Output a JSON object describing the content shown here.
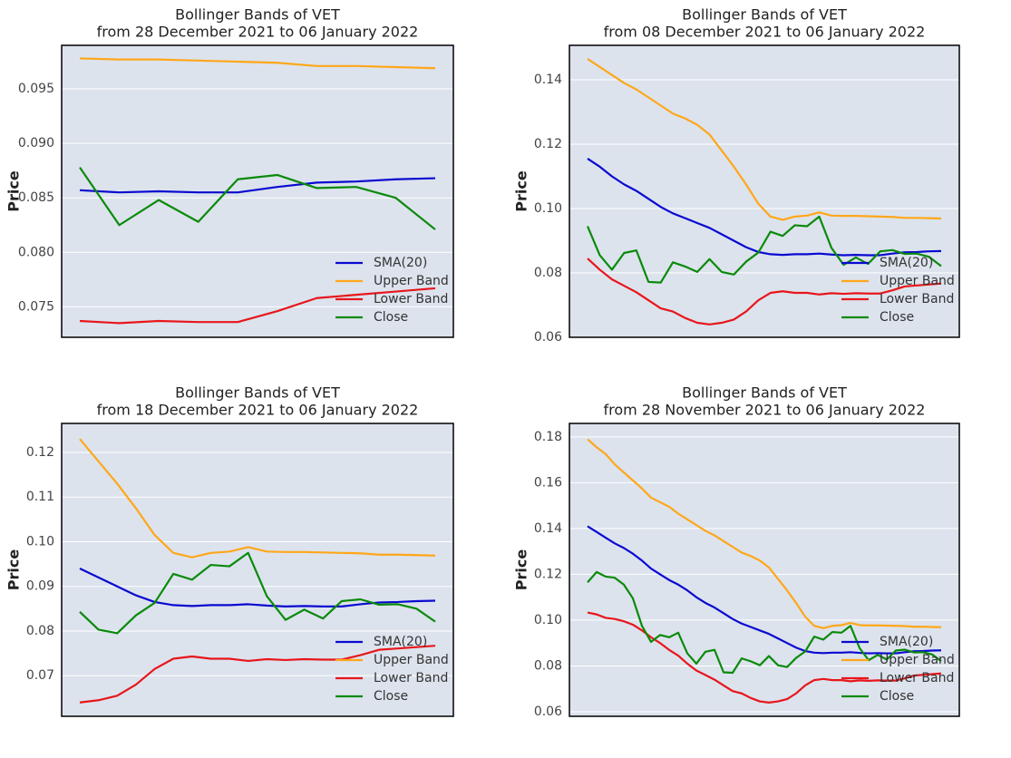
{
  "chart_data": [
    {
      "type": "line",
      "title": "Bollinger Bands of VET",
      "subtitle": "from 28 December 2021 to 06 January 2022",
      "y_label": "Price",
      "categories": [
        null,
        null,
        null,
        null,
        null,
        null,
        null,
        null,
        null,
        null
      ],
      "ylim": [
        0.0722,
        0.099
      ],
      "yticks": [
        {
          "value": 0.075,
          "label": "0.075"
        },
        {
          "value": 0.08,
          "label": "0.080"
        },
        {
          "value": 0.085,
          "label": "0.085"
        },
        {
          "value": 0.09,
          "label": "0.090"
        },
        {
          "value": 0.095,
          "label": "0.095"
        }
      ],
      "grid": true,
      "legend": "lower right",
      "series": [
        {
          "name": "SMA(20)",
          "color": "#0a0ad0",
          "values": [
            0.0857,
            0.0855,
            0.0856,
            0.0855,
            0.0855,
            0.086,
            0.0864,
            0.0865,
            0.0867,
            0.0868
          ]
        },
        {
          "name": "Upper Band",
          "color": "#ffa71a",
          "values": [
            0.0978,
            0.0977,
            0.0977,
            0.0976,
            0.0975,
            0.0974,
            0.0971,
            0.0971,
            0.097,
            0.0969
          ]
        },
        {
          "name": "Lower Band",
          "color": "#e8161b",
          "values": [
            0.0737,
            0.0735,
            0.0737,
            0.0736,
            0.0736,
            0.0746,
            0.0758,
            0.0761,
            0.0764,
            0.0767
          ]
        },
        {
          "name": "Close",
          "color": "#0a8a0a",
          "values": [
            0.0878,
            0.0825,
            0.0848,
            0.0828,
            0.0867,
            0.0871,
            0.0859,
            0.086,
            0.085,
            0.0821
          ]
        }
      ]
    },
    {
      "type": "line",
      "title": "Bollinger Bands of VET",
      "subtitle": "from 08 December 2021 to 06 January 2022",
      "y_label": "Price",
      "categories": [
        null,
        null,
        null,
        null,
        null,
        null,
        null,
        null,
        null,
        null,
        null,
        null,
        null,
        null,
        null,
        null,
        null,
        null,
        null,
        null,
        null,
        null,
        null,
        null,
        null,
        null,
        null,
        null,
        null,
        null
      ],
      "ylim": [
        0.06,
        0.1507
      ],
      "yticks": [
        0.06,
        0.08,
        {
          "value": 0.1,
          "label": "0.10"
        },
        0.12,
        0.14
      ],
      "grid": true,
      "legend": "lower right",
      "series": [
        {
          "name": "SMA(20)",
          "color": "#0a0ad0",
          "values": [
            0.1155,
            0.113,
            0.11,
            0.1075,
            0.1055,
            0.103,
            0.1005,
            0.0985,
            0.097,
            0.0955,
            0.094,
            0.092,
            0.09,
            0.088,
            0.0865,
            0.0858,
            0.0856,
            0.0858,
            0.0858,
            0.086,
            0.0857,
            0.0855,
            0.0856,
            0.0855,
            0.0855,
            0.086,
            0.0864,
            0.0865,
            0.0867,
            0.0868
          ]
        },
        {
          "name": "Upper Band",
          "color": "#ffa71a",
          "values": [
            0.1465,
            0.144,
            0.1415,
            0.139,
            0.137,
            0.1345,
            0.132,
            0.1295,
            0.128,
            0.126,
            0.123,
            0.118,
            0.113,
            0.1075,
            0.1015,
            0.0975,
            0.0965,
            0.0975,
            0.0978,
            0.0988,
            0.0978,
            0.0977,
            0.0977,
            0.0976,
            0.0975,
            0.0974,
            0.0971,
            0.0971,
            0.097,
            0.0969
          ]
        },
        {
          "name": "Lower Band",
          "color": "#e8161b",
          "values": [
            0.0845,
            0.081,
            0.078,
            0.076,
            0.074,
            0.0715,
            0.069,
            0.068,
            0.066,
            0.0645,
            0.064,
            0.0645,
            0.0655,
            0.068,
            0.0715,
            0.0738,
            0.0743,
            0.0738,
            0.0738,
            0.0733,
            0.0737,
            0.0735,
            0.0737,
            0.0736,
            0.0736,
            0.0746,
            0.0758,
            0.0761,
            0.0764,
            0.0767
          ]
        },
        {
          "name": "Close",
          "color": "#0a8a0a",
          "values": [
            0.0945,
            0.0855,
            0.081,
            0.0862,
            0.087,
            0.0772,
            0.077,
            0.0833,
            0.082,
            0.0803,
            0.0843,
            0.0803,
            0.0795,
            0.0835,
            0.0863,
            0.0928,
            0.0915,
            0.0948,
            0.0945,
            0.0975,
            0.0878,
            0.0825,
            0.0848,
            0.0828,
            0.0867,
            0.0871,
            0.0859,
            0.086,
            0.085,
            0.0821
          ]
        }
      ]
    },
    {
      "type": "line",
      "title": "Bollinger Bands of VET",
      "subtitle": "from 18 December 2021 to 06 January 2022",
      "y_label": "Price",
      "categories": [
        null,
        null,
        null,
        null,
        null,
        null,
        null,
        null,
        null,
        null,
        null,
        null,
        null,
        null,
        null,
        null,
        null,
        null,
        null,
        null
      ],
      "ylim": [
        0.0609,
        0.1265
      ],
      "yticks": [
        0.07,
        0.08,
        0.09,
        {
          "value": 0.1,
          "label": "0.10"
        },
        0.11,
        0.12
      ],
      "grid": true,
      "legend": "lower right",
      "series": [
        {
          "name": "SMA(20)",
          "color": "#0a0ad0",
          "values": [
            0.094,
            0.092,
            0.09,
            0.088,
            0.0865,
            0.0858,
            0.0856,
            0.0858,
            0.0858,
            0.086,
            0.0857,
            0.0855,
            0.0856,
            0.0855,
            0.0855,
            0.086,
            0.0864,
            0.0865,
            0.0867,
            0.0868
          ]
        },
        {
          "name": "Upper Band",
          "color": "#ffa71a",
          "values": [
            0.123,
            0.118,
            0.113,
            0.1075,
            0.1015,
            0.0975,
            0.0965,
            0.0975,
            0.0978,
            0.0988,
            0.0978,
            0.0977,
            0.0977,
            0.0976,
            0.0975,
            0.0974,
            0.0971,
            0.0971,
            0.097,
            0.0969
          ]
        },
        {
          "name": "Lower Band",
          "color": "#e8161b",
          "values": [
            0.064,
            0.0645,
            0.0655,
            0.068,
            0.0715,
            0.0738,
            0.0743,
            0.0738,
            0.0738,
            0.0733,
            0.0737,
            0.0735,
            0.0737,
            0.0736,
            0.0736,
            0.0746,
            0.0758,
            0.0761,
            0.0764,
            0.0767
          ]
        },
        {
          "name": "Close",
          "color": "#0a8a0a",
          "values": [
            0.0843,
            0.0803,
            0.0795,
            0.0835,
            0.0863,
            0.0928,
            0.0915,
            0.0948,
            0.0945,
            0.0975,
            0.0878,
            0.0825,
            0.0848,
            0.0828,
            0.0867,
            0.0871,
            0.0859,
            0.086,
            0.085,
            0.0821
          ]
        }
      ]
    },
    {
      "type": "line",
      "title": "Bollinger Bands of VET",
      "subtitle": "from 28 November 2021 to 06 January 2022",
      "y_label": "Price",
      "categories": [
        null,
        null,
        null,
        null,
        null,
        null,
        null,
        null,
        null,
        null,
        null,
        null,
        null,
        null,
        null,
        null,
        null,
        null,
        null,
        null,
        null,
        null,
        null,
        null,
        null,
        null,
        null,
        null,
        null,
        null,
        null,
        null,
        null,
        null,
        null,
        null,
        null,
        null,
        null,
        null
      ],
      "ylim": [
        0.058,
        0.1859
      ],
      "yticks": [
        0.06,
        0.08,
        {
          "value": 0.1,
          "label": "0.10"
        },
        0.12,
        0.14,
        0.16,
        0.18
      ],
      "grid": true,
      "legend": "lower right",
      "series": [
        {
          "name": "SMA(20)",
          "color": "#0a0ad0",
          "values": [
            0.141,
            0.1385,
            0.136,
            0.1335,
            0.1315,
            0.129,
            0.126,
            0.1225,
            0.12,
            0.1175,
            0.1155,
            0.113,
            0.11,
            0.1075,
            0.1055,
            0.103,
            0.1005,
            0.0985,
            0.097,
            0.0955,
            0.094,
            0.092,
            0.09,
            0.088,
            0.0865,
            0.0858,
            0.0856,
            0.0858,
            0.0858,
            0.086,
            0.0857,
            0.0855,
            0.0856,
            0.0855,
            0.0855,
            0.086,
            0.0864,
            0.0865,
            0.0867,
            0.0868
          ]
        },
        {
          "name": "Upper Band",
          "color": "#ffa71a",
          "values": [
            0.179,
            0.1755,
            0.1725,
            0.168,
            0.1645,
            0.161,
            0.1575,
            0.1535,
            0.1515,
            0.1495,
            0.1465,
            0.144,
            0.1415,
            0.139,
            0.137,
            0.1345,
            0.132,
            0.1295,
            0.128,
            0.126,
            0.123,
            0.118,
            0.113,
            0.1075,
            0.1015,
            0.0975,
            0.0965,
            0.0975,
            0.0978,
            0.0988,
            0.0978,
            0.0977,
            0.0977,
            0.0976,
            0.0975,
            0.0974,
            0.0971,
            0.0971,
            0.097,
            0.0969
          ]
        },
        {
          "name": "Lower Band",
          "color": "#e8161b",
          "values": [
            0.1033,
            0.1025,
            0.101,
            0.1005,
            0.0995,
            0.098,
            0.0955,
            0.0925,
            0.09,
            0.087,
            0.0845,
            0.081,
            0.078,
            0.076,
            0.074,
            0.0715,
            0.069,
            0.068,
            0.066,
            0.0645,
            0.064,
            0.0645,
            0.0655,
            0.068,
            0.0715,
            0.0738,
            0.0743,
            0.0738,
            0.0738,
            0.0733,
            0.0737,
            0.0735,
            0.0737,
            0.0736,
            0.0736,
            0.0746,
            0.0758,
            0.0761,
            0.0764,
            0.0767
          ]
        },
        {
          "name": "Close",
          "color": "#0a8a0a",
          "values": [
            0.1165,
            0.121,
            0.119,
            0.1185,
            0.1155,
            0.1095,
            0.0975,
            0.0905,
            0.0935,
            0.0925,
            0.0945,
            0.0855,
            0.081,
            0.0862,
            0.087,
            0.0772,
            0.077,
            0.0833,
            0.082,
            0.0803,
            0.0843,
            0.0803,
            0.0795,
            0.0835,
            0.0863,
            0.0928,
            0.0915,
            0.0948,
            0.0945,
            0.0975,
            0.0878,
            0.0825,
            0.0848,
            0.0828,
            0.0867,
            0.0871,
            0.0859,
            0.086,
            0.085,
            0.0821
          ]
        }
      ]
    }
  ]
}
